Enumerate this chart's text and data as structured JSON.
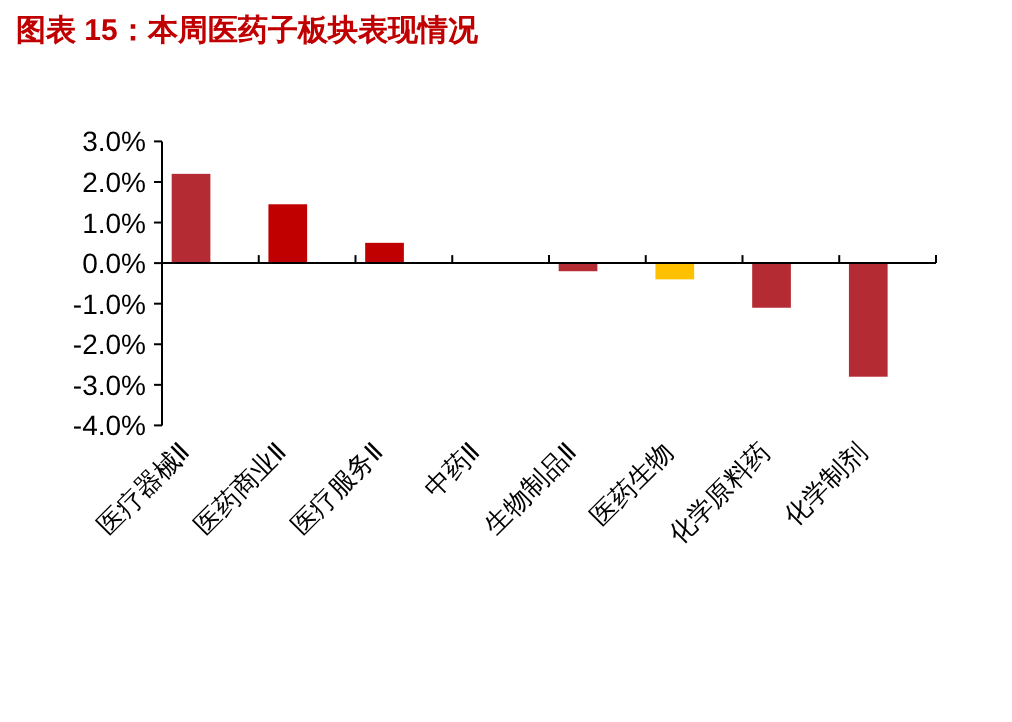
{
  "chart_data": {
    "type": "bar",
    "title": "图表 15：本周医药子板块表现情况",
    "categories": [
      "医疗器械Ⅱ",
      "医药商业Ⅱ",
      "医疗服务Ⅱ",
      "中药Ⅱ",
      "生物制品Ⅱ",
      "医药生物",
      "化学原料药",
      "化学制剂"
    ],
    "values": [
      2.2,
      1.45,
      0.5,
      0,
      -0.2,
      -0.4,
      -1.1,
      -2.8
    ],
    "colors": [
      "#b52b33",
      "#c00000",
      "#c00000",
      "#c00000",
      "#b52b33",
      "#ffc000",
      "#b52b33",
      "#b52b33"
    ],
    "ylim": [
      -4,
      3
    ],
    "yticks": [
      {
        "value": 3,
        "label": "3.0%"
      },
      {
        "value": 2,
        "label": "2.0%"
      },
      {
        "value": 1,
        "label": "1.0%"
      },
      {
        "value": 0,
        "label": "0.0%"
      },
      {
        "value": -1,
        "label": "-1.0%"
      },
      {
        "value": -2,
        "label": "-2.0%"
      },
      {
        "value": -3,
        "label": "-3.0%"
      },
      {
        "value": -4,
        "label": "-4.0%"
      }
    ],
    "grid": "y"
  }
}
